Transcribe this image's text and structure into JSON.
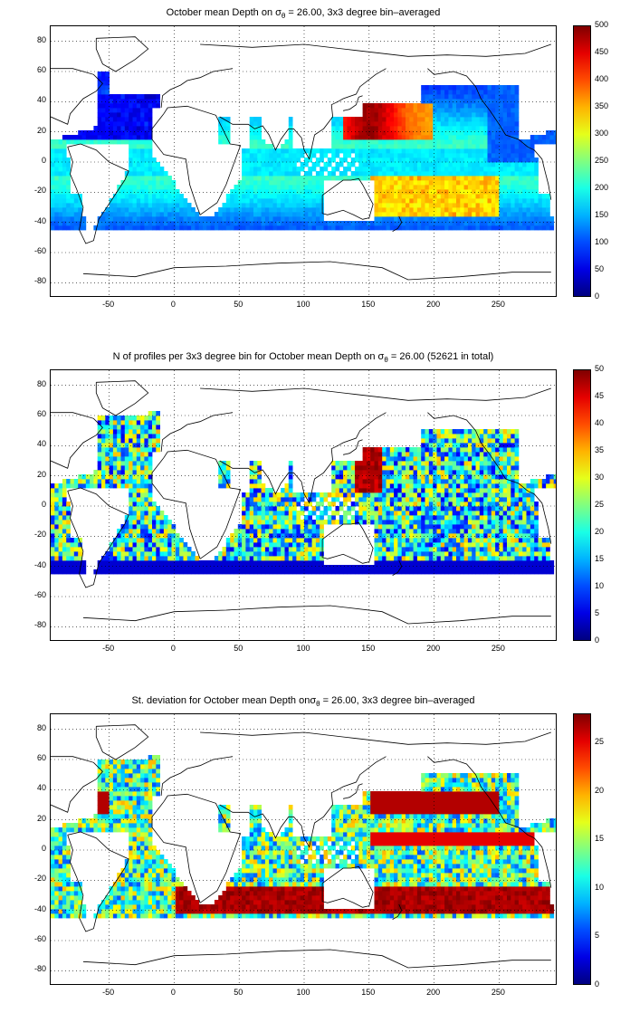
{
  "domain": "Map",
  "map_axes": {
    "x_ticks": [
      "-50",
      "0",
      "50",
      "100",
      "150",
      "200",
      "250"
    ],
    "y_ticks": [
      "80",
      "60",
      "40",
      "20",
      "0",
      "-20",
      "-40",
      "-60",
      "-80"
    ],
    "x_range": [
      -95,
      295
    ],
    "y_range": [
      -90,
      90
    ],
    "grid": "dotted"
  },
  "panels": [
    {
      "title_pre": "October mean Depth on σ",
      "title_sub": "θ",
      "title_post": " = 26.00, 3x3 degree bin–averaged",
      "colorbar_ticks": [
        "500",
        "450",
        "400",
        "350",
        "300",
        "250",
        "200",
        "150",
        "100",
        "50",
        "0"
      ],
      "colorbar_range": [
        0,
        500
      ],
      "colormap": "jet"
    },
    {
      "title_pre": "N of profiles per 3x3 degree bin for October mean Depth on σ",
      "title_sub": "θ",
      "title_post": " = 26.00 (52621 in total)",
      "colorbar_ticks": [
        "50",
        "45",
        "40",
        "35",
        "30",
        "25",
        "20",
        "15",
        "10",
        "5",
        "0"
      ],
      "colorbar_range": [
        0,
        50
      ],
      "colormap": "jet"
    },
    {
      "title_pre": "St. deviation for October mean Depth onσ",
      "title_sub": "θ",
      "title_post": " = 26.00, 3x3 degree bin–averaged",
      "colorbar_ticks": [
        "25",
        "20",
        "15",
        "10",
        "5",
        "0"
      ],
      "colorbar_range": [
        0,
        28
      ],
      "colormap": "jet"
    }
  ]
}
